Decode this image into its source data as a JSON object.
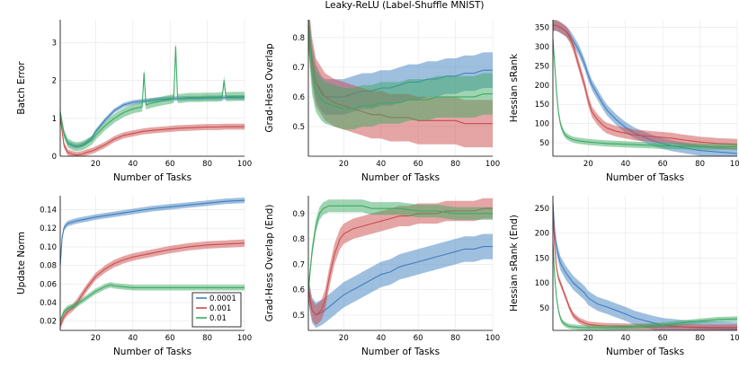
{
  "figure_title": "Leaky-ReLU (Label-Shuffle MNIST)",
  "colors": {
    "0.0001": "#3f7fbf",
    "0.001": "#cc4b4b",
    "0.01": "#3daa64"
  },
  "chart_data": [
    {
      "id": "batch-error",
      "type": "line",
      "title": "",
      "xlabel": "Number of Tasks",
      "ylabel": "Batch Error",
      "xlim": [
        1,
        100
      ],
      "ylim": [
        0,
        3.6
      ],
      "xticks": [
        20,
        40,
        60,
        80,
        100
      ],
      "yticks": [
        0,
        1,
        2,
        3
      ],
      "ytick_labels": [
        "0",
        "1",
        "2",
        "3"
      ],
      "series": [
        {
          "name": "0.0001",
          "band": 0.06,
          "x": [
            1,
            3,
            5,
            8,
            10,
            13,
            15,
            18,
            20,
            25,
            30,
            35,
            40,
            45,
            50,
            55,
            60,
            65,
            70,
            75,
            80,
            85,
            90,
            95,
            100
          ],
          "y": [
            1.15,
            0.6,
            0.35,
            0.28,
            0.26,
            0.3,
            0.36,
            0.48,
            0.65,
            0.95,
            1.2,
            1.35,
            1.42,
            1.45,
            1.48,
            1.5,
            1.52,
            1.52,
            1.53,
            1.53,
            1.54,
            1.54,
            1.55,
            1.55,
            1.55
          ]
        },
        {
          "name": "0.001",
          "band": 0.08,
          "x": [
            1,
            3,
            5,
            8,
            10,
            13,
            15,
            18,
            20,
            25,
            30,
            35,
            40,
            45,
            50,
            55,
            60,
            65,
            70,
            75,
            80,
            85,
            90,
            95,
            100
          ],
          "y": [
            1.05,
            0.3,
            0.1,
            0.05,
            0.03,
            0.06,
            0.1,
            0.14,
            0.18,
            0.3,
            0.45,
            0.55,
            0.6,
            0.65,
            0.68,
            0.7,
            0.72,
            0.74,
            0.75,
            0.76,
            0.77,
            0.77,
            0.78,
            0.78,
            0.78
          ]
        },
        {
          "name": "0.01",
          "band": 0.12,
          "x": [
            1,
            3,
            5,
            8,
            10,
            13,
            15,
            18,
            20,
            25,
            30,
            35,
            40,
            45,
            46,
            47,
            50,
            55,
            60,
            62,
            63,
            64,
            65,
            70,
            75,
            80,
            85,
            88,
            89,
            90,
            95,
            100
          ],
          "y": [
            1.15,
            0.6,
            0.35,
            0.27,
            0.25,
            0.28,
            0.33,
            0.42,
            0.55,
            0.8,
            1.0,
            1.15,
            1.25,
            1.3,
            2.2,
            1.35,
            1.4,
            1.45,
            1.5,
            1.52,
            2.9,
            1.53,
            1.52,
            1.55,
            1.55,
            1.56,
            1.56,
            1.57,
            2.0,
            1.57,
            1.58,
            1.58
          ]
        }
      ]
    },
    {
      "id": "grad-hess-overlap",
      "type": "line",
      "title": "",
      "xlabel": "Number of Tasks",
      "ylabel": "Grad-Hess Overlap",
      "xlim": [
        1,
        100
      ],
      "ylim": [
        0.4,
        0.86
      ],
      "xticks": [
        20,
        40,
        60,
        80,
        100
      ],
      "yticks": [
        0.5,
        0.6,
        0.7,
        0.8
      ],
      "ytick_labels": [
        "0.5",
        "0.6",
        "0.7",
        "0.8"
      ],
      "series": [
        {
          "name": "0.0001",
          "band": 0.06,
          "x": [
            1,
            3,
            5,
            8,
            10,
            15,
            20,
            25,
            30,
            35,
            40,
            45,
            50,
            55,
            60,
            65,
            70,
            75,
            80,
            85,
            90,
            95,
            100
          ],
          "y": [
            0.84,
            0.72,
            0.65,
            0.61,
            0.6,
            0.6,
            0.6,
            0.61,
            0.62,
            0.62,
            0.63,
            0.63,
            0.64,
            0.65,
            0.65,
            0.66,
            0.66,
            0.67,
            0.67,
            0.68,
            0.68,
            0.69,
            0.69
          ]
        },
        {
          "name": "0.001",
          "band": 0.08,
          "x": [
            1,
            3,
            5,
            8,
            10,
            15,
            20,
            25,
            30,
            35,
            40,
            45,
            50,
            55,
            60,
            65,
            70,
            75,
            80,
            85,
            90,
            95,
            100
          ],
          "y": [
            0.84,
            0.72,
            0.65,
            0.62,
            0.6,
            0.58,
            0.57,
            0.56,
            0.55,
            0.54,
            0.54,
            0.53,
            0.53,
            0.53,
            0.52,
            0.52,
            0.52,
            0.52,
            0.52,
            0.51,
            0.51,
            0.51,
            0.51
          ]
        },
        {
          "name": "0.01",
          "band": 0.07,
          "x": [
            1,
            3,
            5,
            8,
            10,
            15,
            20,
            25,
            30,
            35,
            40,
            45,
            50,
            55,
            60,
            65,
            70,
            75,
            80,
            85,
            90,
            95,
            100
          ],
          "y": [
            0.84,
            0.68,
            0.62,
            0.59,
            0.58,
            0.57,
            0.56,
            0.56,
            0.57,
            0.57,
            0.58,
            0.58,
            0.58,
            0.59,
            0.59,
            0.59,
            0.6,
            0.6,
            0.6,
            0.6,
            0.6,
            0.61,
            0.61
          ]
        }
      ]
    },
    {
      "id": "hessian-srank",
      "type": "line",
      "title": "",
      "xlabel": "Number of Tasks",
      "ylabel": "Hessian sRank",
      "xlim": [
        1,
        100
      ],
      "ylim": [
        15,
        370
      ],
      "xticks": [
        20,
        40,
        60,
        80,
        100
      ],
      "yticks": [
        50,
        100,
        150,
        200,
        250,
        300,
        350
      ],
      "ytick_labels": [
        "50",
        "100",
        "150",
        "200",
        "250",
        "300",
        "350"
      ],
      "series": [
        {
          "name": "0.0001",
          "band": 14,
          "x": [
            1,
            3,
            5,
            8,
            10,
            12,
            15,
            18,
            20,
            22,
            25,
            28,
            30,
            35,
            40,
            45,
            50,
            55,
            60,
            65,
            70,
            75,
            80,
            85,
            90,
            95,
            100
          ],
          "y": [
            355,
            355,
            350,
            340,
            330,
            315,
            290,
            255,
            225,
            200,
            175,
            150,
            135,
            110,
            90,
            75,
            65,
            55,
            48,
            42,
            38,
            34,
            30,
            28,
            26,
            24,
            22
          ]
        },
        {
          "name": "0.001",
          "band": 14,
          "x": [
            1,
            3,
            5,
            8,
            10,
            12,
            15,
            18,
            20,
            22,
            25,
            28,
            30,
            35,
            40,
            45,
            50,
            55,
            60,
            65,
            70,
            75,
            80,
            85,
            90,
            95,
            100
          ],
          "y": [
            355,
            355,
            350,
            340,
            325,
            300,
            250,
            200,
            160,
            130,
            110,
            95,
            88,
            80,
            75,
            70,
            68,
            66,
            64,
            62,
            58,
            55,
            52,
            50,
            48,
            47,
            46
          ]
        },
        {
          "name": "0.01",
          "band": 8,
          "x": [
            1,
            2,
            3,
            4,
            5,
            6,
            7,
            8,
            10,
            12,
            15,
            20,
            25,
            30,
            40,
            50,
            60,
            70,
            80,
            90,
            100
          ],
          "y": [
            320,
            250,
            180,
            130,
            100,
            85,
            75,
            68,
            62,
            58,
            55,
            52,
            50,
            48,
            46,
            44,
            42,
            41,
            40,
            40,
            40
          ]
        }
      ]
    },
    {
      "id": "update-norm",
      "type": "line",
      "title": "",
      "xlabel": "Number of Tasks",
      "ylabel": "Update Norm",
      "xlim": [
        1,
        100
      ],
      "ylim": [
        0.01,
        0.155
      ],
      "xticks": [
        20,
        40,
        60,
        80,
        100
      ],
      "yticks": [
        0.02,
        0.04,
        0.06,
        0.08,
        0.1,
        0.12,
        0.14
      ],
      "ytick_labels": [
        "0.02",
        "0.04",
        "0.06",
        "0.08",
        "0.10",
        "0.12",
        "0.14"
      ],
      "legend": {
        "entries": [
          "0.0001",
          "0.001",
          "0.01"
        ],
        "placement": "bottom-right"
      },
      "series": [
        {
          "name": "0.0001",
          "band": 0.003,
          "x": [
            1,
            2,
            3,
            4,
            5,
            8,
            10,
            15,
            20,
            30,
            40,
            50,
            60,
            70,
            80,
            90,
            100
          ],
          "y": [
            0.08,
            0.11,
            0.12,
            0.123,
            0.125,
            0.127,
            0.128,
            0.13,
            0.132,
            0.135,
            0.138,
            0.141,
            0.143,
            0.145,
            0.147,
            0.149,
            0.15
          ]
        },
        {
          "name": "0.001",
          "band": 0.004,
          "x": [
            1,
            3,
            5,
            8,
            10,
            15,
            20,
            25,
            30,
            35,
            40,
            45,
            50,
            60,
            70,
            80,
            90,
            100
          ],
          "y": [
            0.015,
            0.025,
            0.03,
            0.035,
            0.04,
            0.055,
            0.068,
            0.076,
            0.082,
            0.086,
            0.089,
            0.091,
            0.093,
            0.097,
            0.1,
            0.102,
            0.103,
            0.104
          ]
        },
        {
          "name": "0.01",
          "band": 0.003,
          "x": [
            1,
            3,
            5,
            8,
            10,
            15,
            20,
            25,
            28,
            30,
            35,
            40,
            50,
            60,
            70,
            80,
            90,
            100
          ],
          "y": [
            0.02,
            0.03,
            0.034,
            0.036,
            0.038,
            0.045,
            0.052,
            0.057,
            0.059,
            0.058,
            0.057,
            0.056,
            0.056,
            0.056,
            0.056,
            0.056,
            0.056,
            0.056
          ]
        }
      ]
    },
    {
      "id": "grad-hess-overlap-end",
      "type": "line",
      "title": "",
      "xlabel": "Number of Tasks",
      "ylabel": "Grad-Hess Overlap (End)",
      "xlim": [
        1,
        100
      ],
      "ylim": [
        0.44,
        0.97
      ],
      "xticks": [
        20,
        40,
        60,
        80,
        100
      ],
      "yticks": [
        0.5,
        0.6,
        0.7,
        0.8,
        0.9
      ],
      "ytick_labels": [
        "0.5",
        "0.6",
        "0.7",
        "0.8",
        "0.9"
      ],
      "series": [
        {
          "name": "0.0001",
          "band": 0.05,
          "x": [
            1,
            3,
            5,
            8,
            10,
            15,
            20,
            25,
            30,
            35,
            40,
            45,
            50,
            55,
            60,
            65,
            70,
            75,
            80,
            85,
            90,
            95,
            100
          ],
          "y": [
            0.6,
            0.52,
            0.5,
            0.51,
            0.52,
            0.55,
            0.58,
            0.6,
            0.62,
            0.64,
            0.66,
            0.67,
            0.69,
            0.7,
            0.71,
            0.72,
            0.73,
            0.74,
            0.75,
            0.76,
            0.76,
            0.77,
            0.77
          ]
        },
        {
          "name": "0.001",
          "band": 0.04,
          "x": [
            1,
            3,
            5,
            8,
            10,
            12,
            15,
            18,
            20,
            25,
            30,
            35,
            40,
            45,
            50,
            55,
            60,
            65,
            70,
            75,
            80,
            85,
            90,
            95,
            100
          ],
          "y": [
            0.6,
            0.52,
            0.5,
            0.52,
            0.56,
            0.64,
            0.74,
            0.8,
            0.82,
            0.84,
            0.85,
            0.86,
            0.87,
            0.88,
            0.89,
            0.89,
            0.9,
            0.9,
            0.9,
            0.91,
            0.91,
            0.91,
            0.91,
            0.92,
            0.92
          ]
        },
        {
          "name": "0.01",
          "band": 0.025,
          "x": [
            1,
            3,
            5,
            7,
            9,
            12,
            15,
            20,
            25,
            30,
            35,
            40,
            50,
            60,
            70,
            80,
            90,
            100
          ],
          "y": [
            0.6,
            0.75,
            0.85,
            0.9,
            0.92,
            0.93,
            0.93,
            0.93,
            0.93,
            0.93,
            0.92,
            0.92,
            0.92,
            0.91,
            0.91,
            0.9,
            0.9,
            0.9
          ]
        }
      ]
    },
    {
      "id": "hessian-srank-end",
      "type": "line",
      "title": "",
      "xlabel": "Number of Tasks",
      "ylabel": "Hessian sRank (End)",
      "xlim": [
        1,
        100
      ],
      "ylim": [
        5,
        275
      ],
      "xticks": [
        20,
        40,
        60,
        80,
        100
      ],
      "yticks": [
        50,
        100,
        150,
        200,
        250
      ],
      "ytick_labels": [
        "50",
        "100",
        "150",
        "200",
        "250"
      ],
      "series": [
        {
          "name": "0.0001",
          "band": 14,
          "x": [
            1,
            2,
            3,
            5,
            8,
            10,
            12,
            15,
            18,
            20,
            25,
            30,
            35,
            40,
            45,
            50,
            55,
            60,
            70,
            80,
            90,
            100
          ],
          "y": [
            260,
            200,
            170,
            140,
            120,
            110,
            100,
            90,
            80,
            70,
            58,
            52,
            45,
            38,
            30,
            25,
            20,
            16,
            12,
            10,
            9,
            8
          ]
        },
        {
          "name": "0.001",
          "band": 6,
          "x": [
            1,
            2,
            3,
            4,
            5,
            6,
            8,
            10,
            12,
            15,
            18,
            20,
            25,
            30,
            40,
            50,
            60,
            70,
            80,
            90,
            100
          ],
          "y": [
            250,
            170,
            130,
            110,
            100,
            90,
            70,
            50,
            35,
            25,
            20,
            17,
            15,
            14,
            13,
            12,
            12,
            12,
            11,
            11,
            11
          ]
        },
        {
          "name": "0.01",
          "band": 5,
          "x": [
            1,
            2,
            3,
            4,
            5,
            6,
            8,
            10,
            15,
            20,
            30,
            40,
            50,
            60,
            70,
            80,
            90,
            100
          ],
          "y": [
            180,
            110,
            70,
            45,
            30,
            22,
            16,
            13,
            11,
            10,
            10,
            11,
            13,
            16,
            20,
            24,
            27,
            28
          ]
        }
      ]
    }
  ]
}
